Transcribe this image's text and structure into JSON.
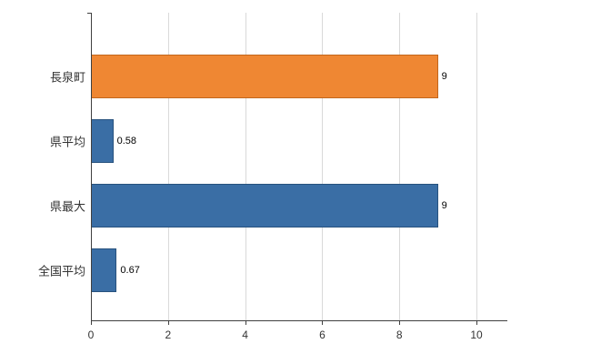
{
  "chart_data": {
    "type": "bar",
    "orientation": "horizontal",
    "title": "",
    "categories": [
      "長泉町",
      "県平均",
      "県最大",
      "全国平均"
    ],
    "values": [
      9,
      0.58,
      9,
      0.67
    ],
    "value_labels": [
      "9",
      "0.58",
      "9",
      "0.67"
    ],
    "bar_fill_colors": [
      "#ef8733",
      "#3a6ea5",
      "#3a6ea5",
      "#3a6ea5"
    ],
    "bar_border_colors": [
      "#c2661c",
      "#28527e",
      "#28527e",
      "#28527e"
    ],
    "xticks": [
      0,
      2,
      4,
      6,
      8,
      10
    ],
    "xlim": [
      0,
      10.8
    ],
    "grid": true,
    "legend": "none"
  },
  "colors": {
    "background": "#ffffff",
    "gridline": "#d9d9d9",
    "axis": "#404040",
    "text": "#333333"
  }
}
